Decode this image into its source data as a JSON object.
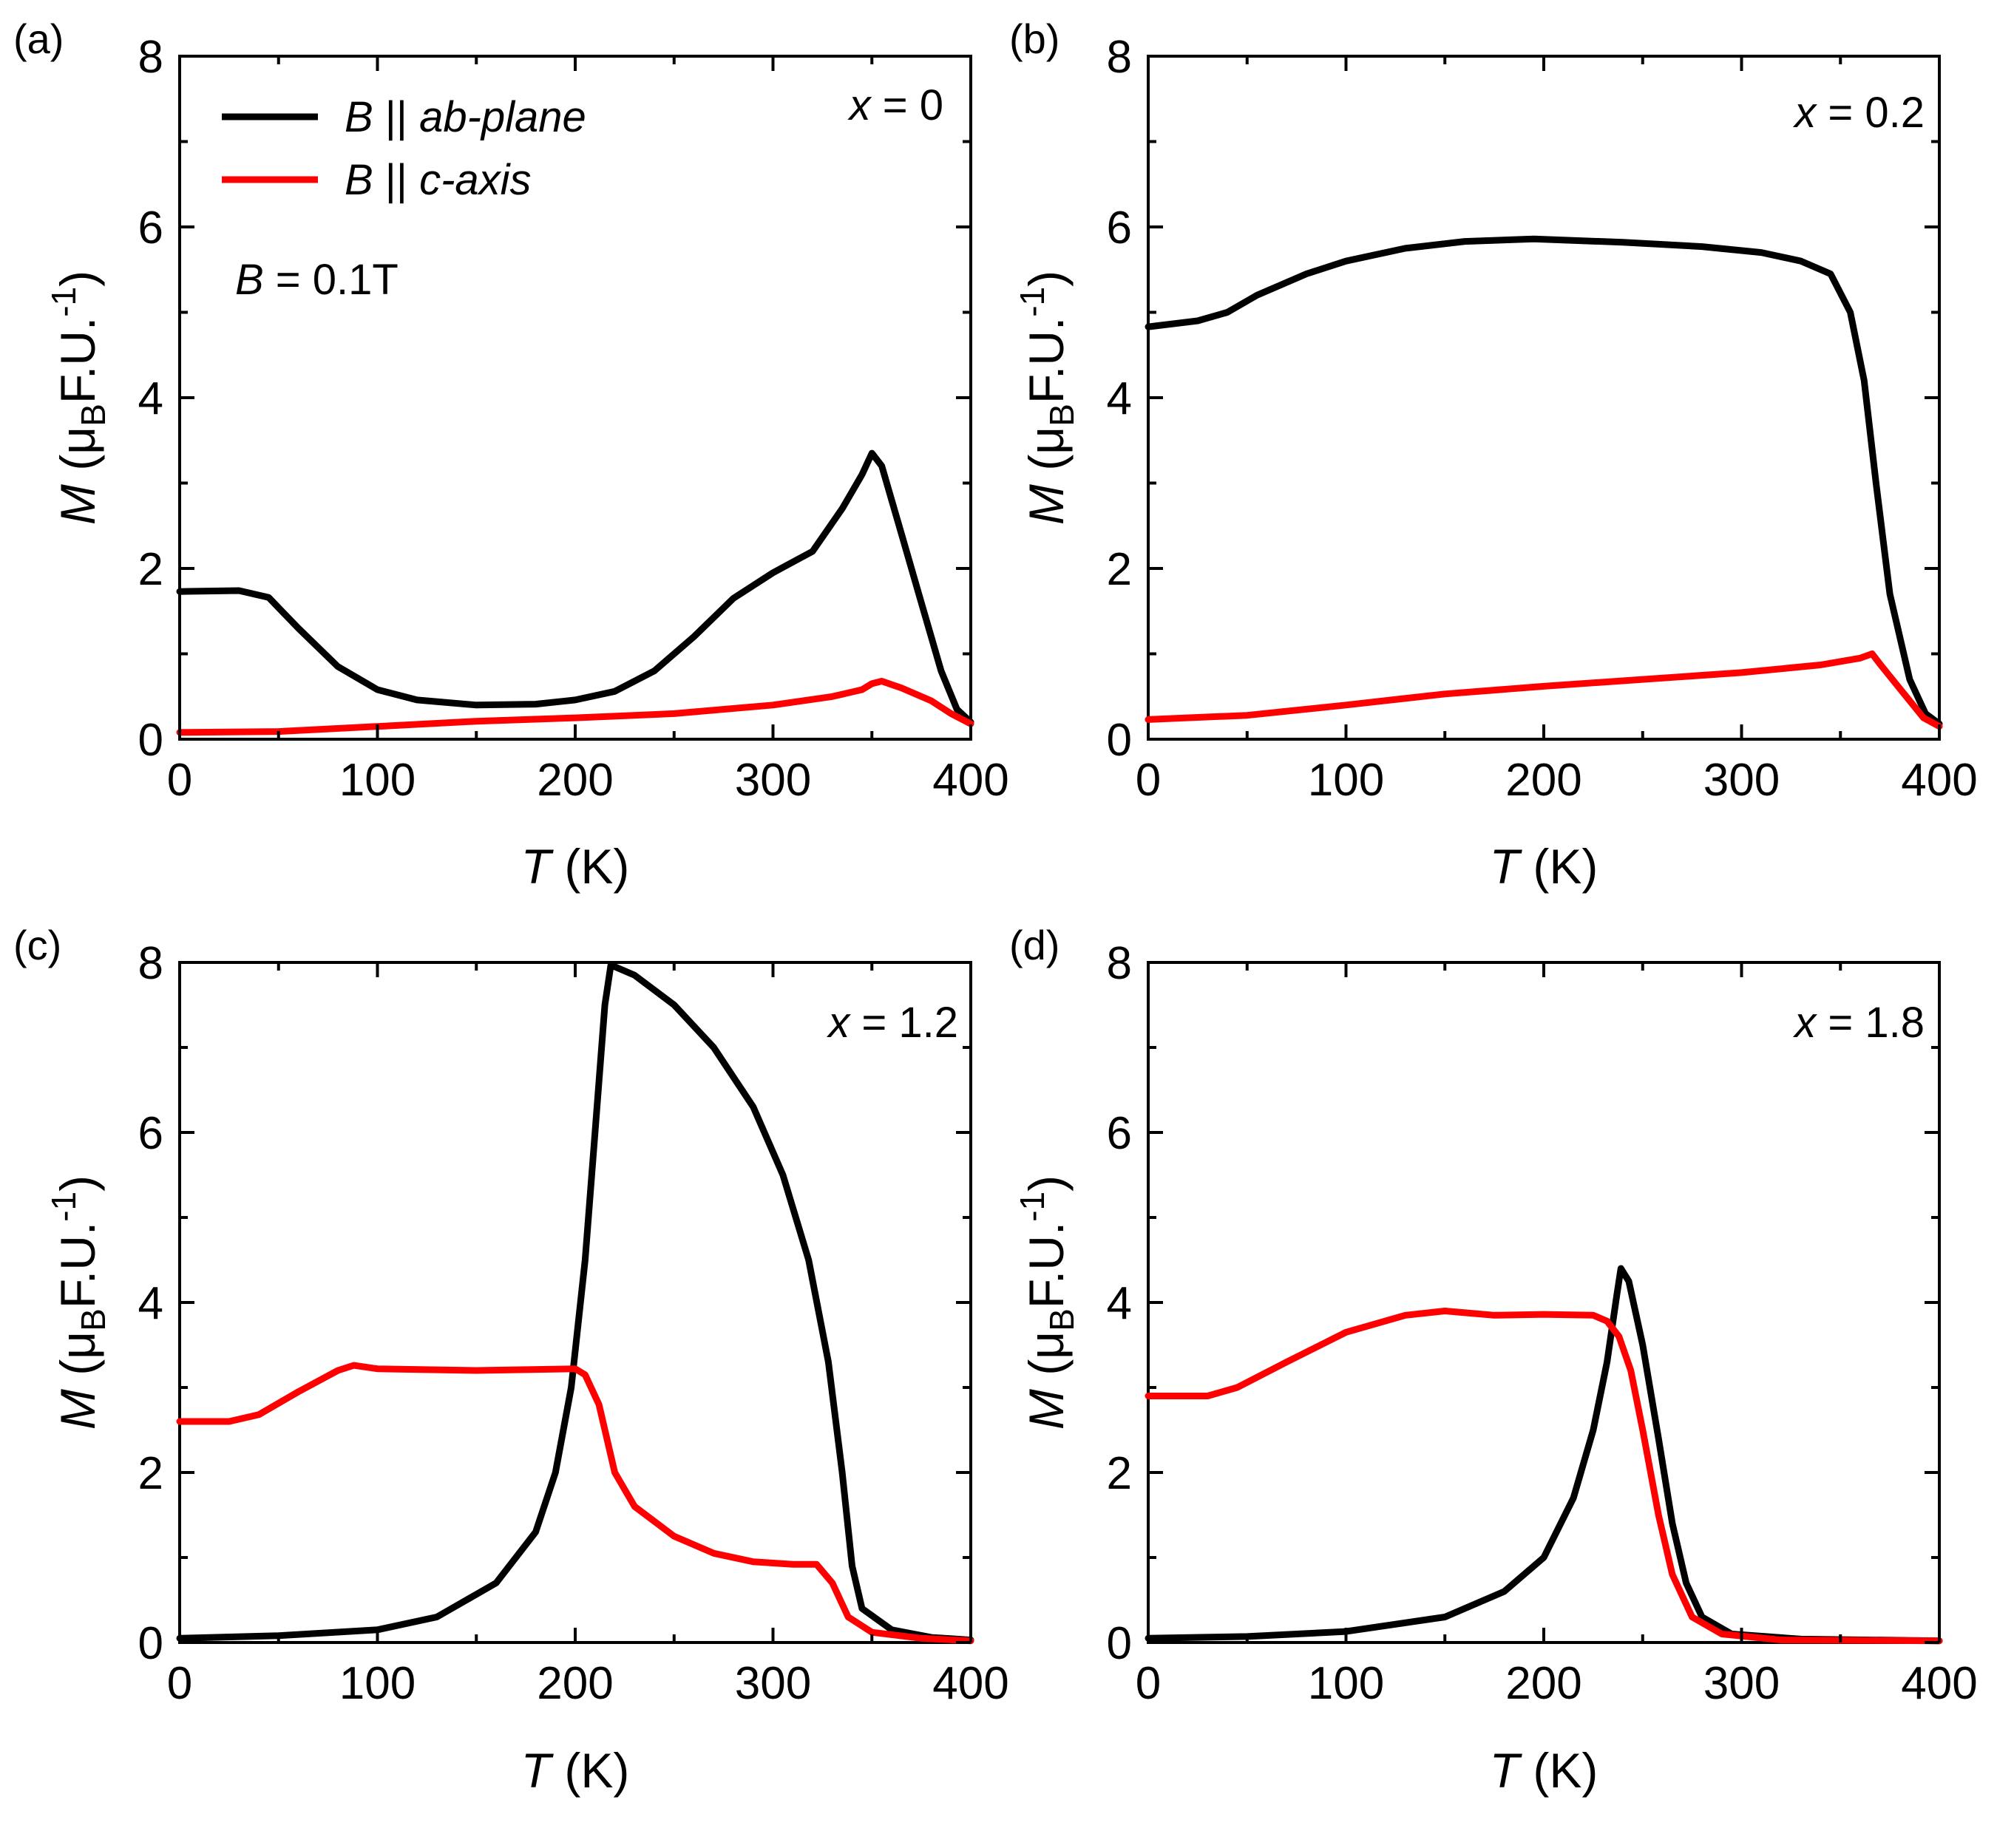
{
  "colors": {
    "ab_plane": "#000000",
    "c_axis": "#ff0000"
  },
  "legend": {
    "entries": [
      {
        "prefix": "B",
        "sep": " || ",
        "label": "ab-plane",
        "color": "#000000"
      },
      {
        "prefix": "B",
        "sep": " || ",
        "label": "c-axis",
        "color": "#ff0000"
      }
    ],
    "field": {
      "symbol": "B",
      "text": " = 0.1T"
    }
  },
  "chart_data": [
    {
      "type": "line",
      "panel_label": "(a)",
      "annotation": {
        "var": "x",
        "text": " = 0"
      },
      "xlabel": {
        "var": "T",
        "unit": " (K)"
      },
      "ylabel": {
        "var": "M",
        "unit_open": " (μ",
        "unit_sub": "B",
        "unit_mid": "F.U.",
        "unit_sup": "-1",
        "unit_close": ")"
      },
      "xlim": [
        0,
        400
      ],
      "ylim": [
        0,
        8
      ],
      "xticks": [
        "0",
        "100",
        "200",
        "300",
        "400"
      ],
      "yticks": [
        "0",
        "2",
        "4",
        "6",
        "8"
      ],
      "series": [
        {
          "name": "B || ab-plane",
          "color": "#000000",
          "points": [
            [
              0,
              1.73
            ],
            [
              30,
              1.74
            ],
            [
              45,
              1.66
            ],
            [
              60,
              1.3
            ],
            [
              80,
              0.85
            ],
            [
              100,
              0.58
            ],
            [
              120,
              0.46
            ],
            [
              150,
              0.4
            ],
            [
              180,
              0.41
            ],
            [
              200,
              0.46
            ],
            [
              220,
              0.56
            ],
            [
              240,
              0.8
            ],
            [
              260,
              1.2
            ],
            [
              280,
              1.65
            ],
            [
              300,
              1.95
            ],
            [
              320,
              2.2
            ],
            [
              335,
              2.7
            ],
            [
              345,
              3.1
            ],
            [
              350,
              3.35
            ],
            [
              355,
              3.2
            ],
            [
              365,
              2.4
            ],
            [
              375,
              1.6
            ],
            [
              385,
              0.8
            ],
            [
              393,
              0.35
            ],
            [
              400,
              0.2
            ]
          ]
        },
        {
          "name": "B || c-axis",
          "color": "#ff0000",
          "points": [
            [
              0,
              0.08
            ],
            [
              50,
              0.09
            ],
            [
              100,
              0.15
            ],
            [
              150,
              0.21
            ],
            [
              200,
              0.25
            ],
            [
              250,
              0.3
            ],
            [
              300,
              0.4
            ],
            [
              330,
              0.5
            ],
            [
              345,
              0.58
            ],
            [
              350,
              0.65
            ],
            [
              355,
              0.68
            ],
            [
              365,
              0.6
            ],
            [
              380,
              0.45
            ],
            [
              390,
              0.3
            ],
            [
              400,
              0.18
            ]
          ]
        }
      ]
    },
    {
      "type": "line",
      "panel_label": "(b)",
      "annotation": {
        "var": "x",
        "text": " = 0.2"
      },
      "xlabel": {
        "var": "T",
        "unit": " (K)"
      },
      "ylabel": {
        "var": "M",
        "unit_open": " (μ",
        "unit_sub": "B",
        "unit_mid": "F.U.",
        "unit_sup": "-1",
        "unit_close": ")"
      },
      "xlim": [
        0,
        400
      ],
      "ylim": [
        0,
        8
      ],
      "xticks": [
        "0",
        "100",
        "200",
        "300",
        "400"
      ],
      "yticks": [
        "0",
        "2",
        "4",
        "6",
        "8"
      ],
      "series": [
        {
          "name": "B || ab-plane",
          "color": "#000000",
          "points": [
            [
              0,
              4.83
            ],
            [
              25,
              4.9
            ],
            [
              40,
              5.0
            ],
            [
              55,
              5.2
            ],
            [
              80,
              5.45
            ],
            [
              100,
              5.6
            ],
            [
              130,
              5.75
            ],
            [
              160,
              5.83
            ],
            [
              195,
              5.86
            ],
            [
              240,
              5.82
            ],
            [
              280,
              5.77
            ],
            [
              310,
              5.7
            ],
            [
              330,
              5.6
            ],
            [
              345,
              5.45
            ],
            [
              355,
              5.0
            ],
            [
              362,
              4.2
            ],
            [
              368,
              3.0
            ],
            [
              375,
              1.7
            ],
            [
              385,
              0.7
            ],
            [
              393,
              0.3
            ],
            [
              400,
              0.18
            ]
          ]
        },
        {
          "name": "B || c-axis",
          "color": "#ff0000",
          "points": [
            [
              0,
              0.23
            ],
            [
              50,
              0.28
            ],
            [
              100,
              0.4
            ],
            [
              150,
              0.53
            ],
            [
              200,
              0.62
            ],
            [
              250,
              0.7
            ],
            [
              300,
              0.78
            ],
            [
              340,
              0.87
            ],
            [
              360,
              0.95
            ],
            [
              366,
              1.0
            ],
            [
              370,
              0.88
            ],
            [
              378,
              0.65
            ],
            [
              385,
              0.45
            ],
            [
              392,
              0.25
            ],
            [
              400,
              0.15
            ]
          ]
        }
      ]
    },
    {
      "type": "line",
      "panel_label": "(c)",
      "annotation": {
        "var": "x",
        "text": " = 1.2"
      },
      "xlabel": {
        "var": "T",
        "unit": " (K)"
      },
      "ylabel": {
        "var": "M",
        "unit_open": " (μ",
        "unit_sub": "B",
        "unit_mid": "F.U.",
        "unit_sup": "-1",
        "unit_close": ")"
      },
      "xlim": [
        0,
        400
      ],
      "ylim": [
        0,
        8
      ],
      "xticks": [
        "0",
        "100",
        "200",
        "300",
        "400"
      ],
      "yticks": [
        "0",
        "2",
        "4",
        "6",
        "8"
      ],
      "series": [
        {
          "name": "B || ab-plane",
          "color": "#000000",
          "points": [
            [
              0,
              0.05
            ],
            [
              50,
              0.08
            ],
            [
              100,
              0.15
            ],
            [
              130,
              0.3
            ],
            [
              160,
              0.7
            ],
            [
              180,
              1.3
            ],
            [
              190,
              2.0
            ],
            [
              198,
              3.0
            ],
            [
              205,
              4.5
            ],
            [
              210,
              6.0
            ],
            [
              215,
              7.5
            ],
            [
              218,
              7.97
            ],
            [
              230,
              7.85
            ],
            [
              250,
              7.5
            ],
            [
              270,
              7.0
            ],
            [
              290,
              6.3
            ],
            [
              305,
              5.5
            ],
            [
              318,
              4.5
            ],
            [
              328,
              3.3
            ],
            [
              335,
              2.0
            ],
            [
              340,
              0.9
            ],
            [
              345,
              0.4
            ],
            [
              360,
              0.15
            ],
            [
              380,
              0.06
            ],
            [
              400,
              0.03
            ]
          ]
        },
        {
          "name": "B || c-axis",
          "color": "#ff0000",
          "points": [
            [
              0,
              2.6
            ],
            [
              25,
              2.6
            ],
            [
              40,
              2.68
            ],
            [
              60,
              2.95
            ],
            [
              80,
              3.2
            ],
            [
              88,
              3.26
            ],
            [
              100,
              3.22
            ],
            [
              150,
              3.2
            ],
            [
              200,
              3.22
            ],
            [
              205,
              3.15
            ],
            [
              212,
              2.8
            ],
            [
              220,
              2.0
            ],
            [
              230,
              1.6
            ],
            [
              250,
              1.25
            ],
            [
              270,
              1.05
            ],
            [
              290,
              0.95
            ],
            [
              310,
              0.92
            ],
            [
              322,
              0.92
            ],
            [
              330,
              0.7
            ],
            [
              338,
              0.3
            ],
            [
              350,
              0.12
            ],
            [
              375,
              0.05
            ],
            [
              400,
              0.02
            ]
          ]
        }
      ]
    },
    {
      "type": "line",
      "panel_label": "(d)",
      "annotation": {
        "var": "x",
        "text": " = 1.8"
      },
      "xlabel": {
        "var": "T",
        "unit": " (K)"
      },
      "ylabel": {
        "var": "M",
        "unit_open": " (μ",
        "unit_sub": "B",
        "unit_mid": "F.U.",
        "unit_sup": "-1",
        "unit_close": ")"
      },
      "xlim": [
        0,
        400
      ],
      "ylim": [
        0,
        8
      ],
      "xticks": [
        "0",
        "100",
        "200",
        "300",
        "400"
      ],
      "yticks": [
        "0",
        "2",
        "4",
        "6",
        "8"
      ],
      "series": [
        {
          "name": "B || ab-plane",
          "color": "#000000",
          "points": [
            [
              0,
              0.05
            ],
            [
              50,
              0.07
            ],
            [
              100,
              0.13
            ],
            [
              150,
              0.3
            ],
            [
              180,
              0.6
            ],
            [
              200,
              1.0
            ],
            [
              215,
              1.7
            ],
            [
              225,
              2.5
            ],
            [
              232,
              3.3
            ],
            [
              237,
              4.1
            ],
            [
              239,
              4.4
            ],
            [
              243,
              4.25
            ],
            [
              250,
              3.5
            ],
            [
              258,
              2.4
            ],
            [
              265,
              1.4
            ],
            [
              272,
              0.7
            ],
            [
              280,
              0.3
            ],
            [
              295,
              0.1
            ],
            [
              330,
              0.04
            ],
            [
              400,
              0.02
            ]
          ]
        },
        {
          "name": "B || c-axis",
          "color": "#ff0000",
          "points": [
            [
              0,
              2.9
            ],
            [
              30,
              2.9
            ],
            [
              45,
              3.0
            ],
            [
              70,
              3.3
            ],
            [
              100,
              3.65
            ],
            [
              130,
              3.85
            ],
            [
              150,
              3.9
            ],
            [
              165,
              3.87
            ],
            [
              175,
              3.85
            ],
            [
              200,
              3.86
            ],
            [
              225,
              3.85
            ],
            [
              232,
              3.78
            ],
            [
              238,
              3.6
            ],
            [
              244,
              3.2
            ],
            [
              250,
              2.5
            ],
            [
              258,
              1.5
            ],
            [
              265,
              0.8
            ],
            [
              275,
              0.3
            ],
            [
              290,
              0.1
            ],
            [
              320,
              0.03
            ],
            [
              400,
              0.02
            ]
          ]
        }
      ]
    }
  ]
}
